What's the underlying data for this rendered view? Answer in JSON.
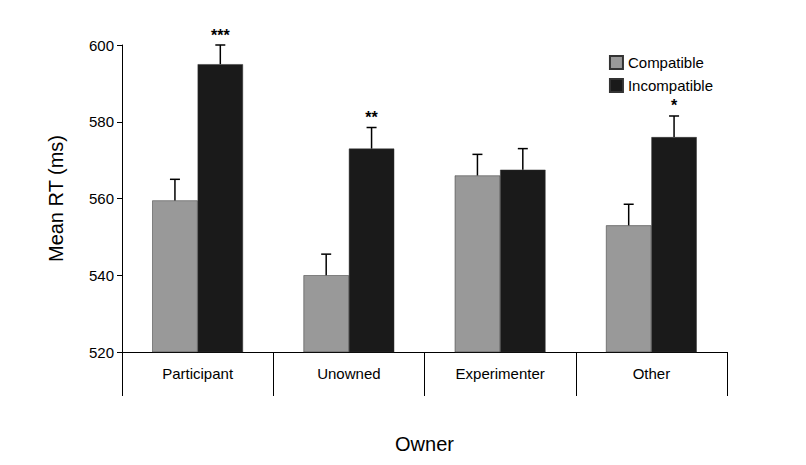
{
  "chart_data": {
    "type": "bar",
    "x_label": "Owner",
    "y_label": "Mean RT (ms)",
    "categories": [
      "Participant",
      "Unowned",
      "Experimenter",
      "Other"
    ],
    "series": [
      {
        "name": "Compatible",
        "color": "#999999",
        "values": [
          559.5,
          540,
          566,
          553
        ],
        "errors": [
          5.5,
          5.5,
          5.5,
          5.5
        ]
      },
      {
        "name": "Incompatible",
        "color": "#1a1a1a",
        "values": [
          595,
          573,
          567.5,
          576
        ],
        "errors": [
          5,
          5.5,
          5.5,
          5.5
        ]
      }
    ],
    "annotations": [
      {
        "category": "Participant",
        "series": "Incompatible",
        "text": "***"
      },
      {
        "category": "Unowned",
        "series": "Incompatible",
        "text": "**"
      },
      {
        "category": "Other",
        "series": "Incompatible",
        "text": "*"
      }
    ],
    "ylim": [
      520,
      600
    ],
    "yticks": [
      520,
      540,
      560,
      580,
      600
    ],
    "grid": false,
    "legend": "top-right"
  }
}
